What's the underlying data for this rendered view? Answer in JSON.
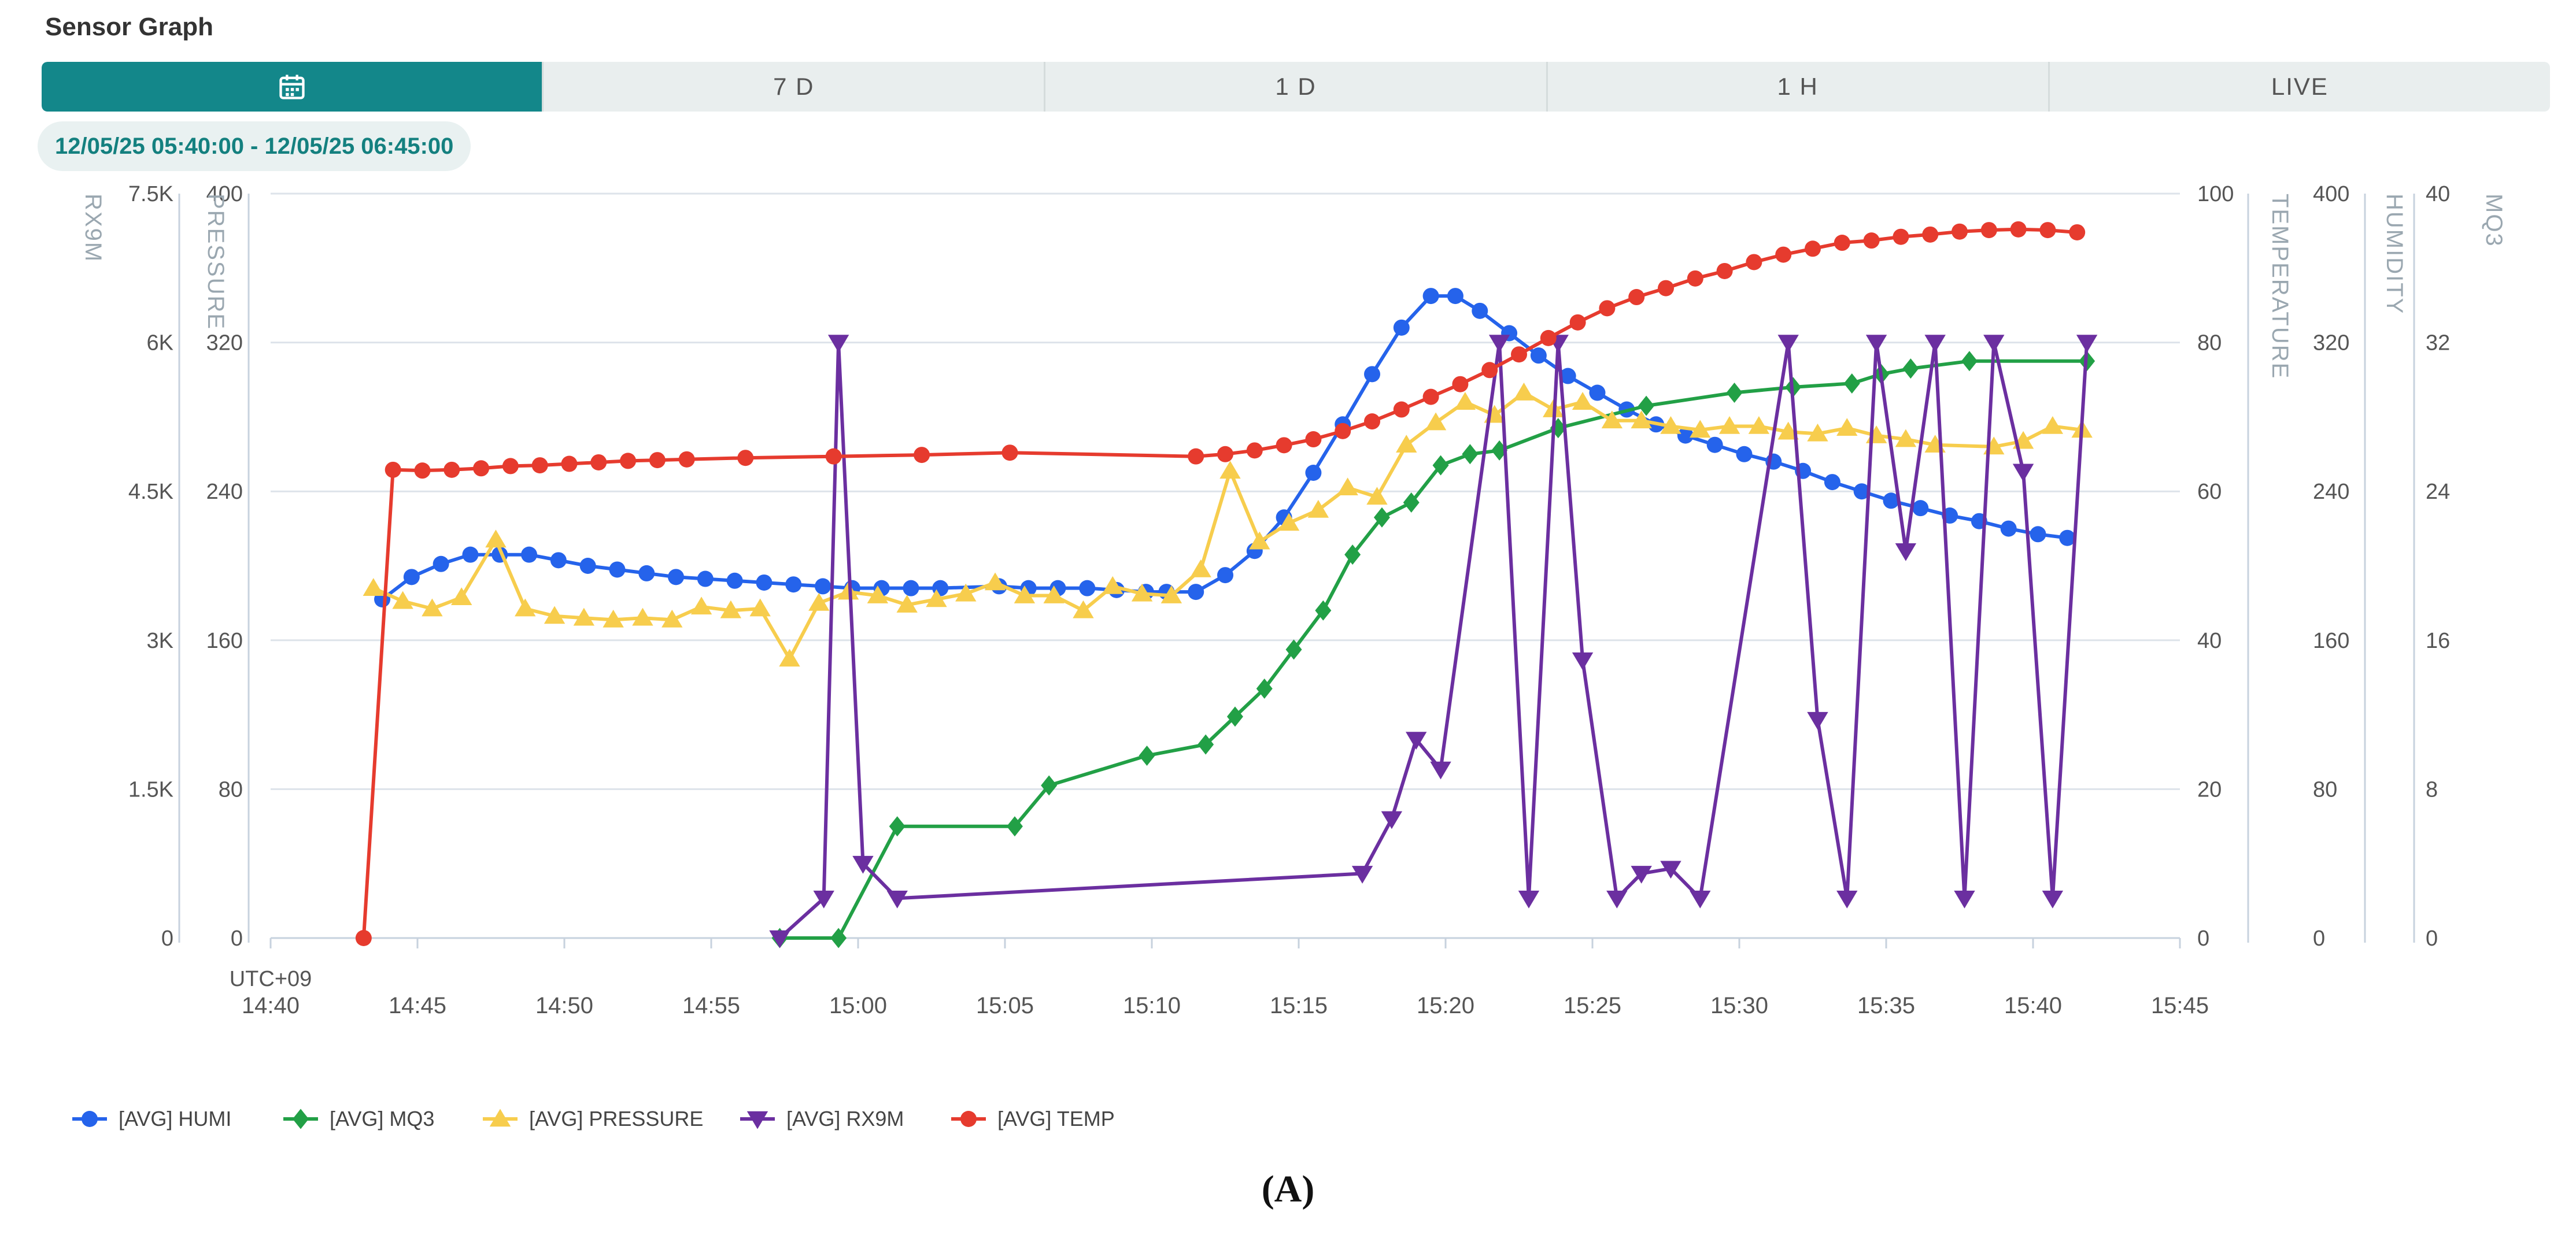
{
  "header": {
    "title": "Sensor Graph"
  },
  "tabs": [
    {
      "label": "",
      "icon": "calendar-icon",
      "active": true
    },
    {
      "label": "7 D"
    },
    {
      "label": "1 D"
    },
    {
      "label": "1 H"
    },
    {
      "label": "LIVE"
    }
  ],
  "range_label": "12/05/25 05:40:00 - 12/05/25 06:45:00",
  "figure_caption": "(A)",
  "colors": {
    "accent": "#13878a",
    "humi": "#2563eb",
    "mq3": "#22a046",
    "pressure": "#f7cd4d",
    "rx9m": "#6b2fa0",
    "temp": "#e63b2e"
  },
  "chart_data": {
    "type": "line",
    "timezone_label": "UTC+09",
    "x_ticks": [
      "14:40",
      "14:45",
      "14:50",
      "14:55",
      "15:00",
      "15:05",
      "15:10",
      "15:15",
      "15:20",
      "15:25",
      "15:30",
      "15:35",
      "15:40",
      "15:45"
    ],
    "xlim": [
      "14:40",
      "15:45"
    ],
    "grid": true,
    "legend_position": "bottom-left",
    "axes": [
      {
        "id": "rx9m",
        "label": "RX9M",
        "side": "left",
        "ylim": [
          0,
          7500
        ],
        "ticks": [
          "0",
          "1.5K",
          "3K",
          "4.5K",
          "6K",
          "7.5K"
        ]
      },
      {
        "id": "pressure",
        "label": "PRESSURE",
        "side": "left",
        "ylim": [
          0,
          400
        ],
        "ticks": [
          "0",
          "80",
          "160",
          "240",
          "320",
          "400"
        ]
      },
      {
        "id": "temperature",
        "label": "TEMPERATURE",
        "side": "right",
        "ylim": [
          0,
          100
        ],
        "ticks": [
          "0",
          "20",
          "40",
          "60",
          "80",
          "100"
        ]
      },
      {
        "id": "humidity",
        "label": "HUMIDITY",
        "side": "right",
        "ylim": [
          0,
          400
        ],
        "ticks": [
          "0",
          "80",
          "160",
          "240",
          "320",
          "400"
        ]
      },
      {
        "id": "mq3",
        "label": "MQ3",
        "side": "right",
        "ylim": [
          0,
          40
        ],
        "ticks": [
          "0",
          "8",
          "16",
          "24",
          "32",
          "40"
        ]
      }
    ],
    "series": [
      {
        "name": "[AVG] HUMI",
        "axis": "humidity",
        "marker": "circle",
        "color": "#2563eb",
        "points": [
          [
            "14:43:48",
            182
          ],
          [
            "14:44:48",
            194
          ],
          [
            "14:45:48",
            201
          ],
          [
            "14:46:48",
            206
          ],
          [
            "14:47:48",
            206
          ],
          [
            "14:48:48",
            206
          ],
          [
            "14:49:48",
            203
          ],
          [
            "14:50:48",
            200
          ],
          [
            "14:51:48",
            198
          ],
          [
            "14:52:48",
            196
          ],
          [
            "14:53:48",
            194
          ],
          [
            "14:54:48",
            193
          ],
          [
            "14:55:48",
            192
          ],
          [
            "14:56:48",
            191
          ],
          [
            "14:57:48",
            190
          ],
          [
            "14:58:48",
            189
          ],
          [
            "14:59:48",
            188
          ],
          [
            "15:00:48",
            188
          ],
          [
            "15:01:48",
            188
          ],
          [
            "15:02:48",
            188
          ],
          [
            "15:04:48",
            189
          ],
          [
            "15:05:48",
            188
          ],
          [
            "15:06:48",
            188
          ],
          [
            "15:07:48",
            188
          ],
          [
            "15:08:48",
            187
          ],
          [
            "15:09:48",
            186
          ],
          [
            "15:10:30",
            186
          ],
          [
            "15:11:30",
            186
          ],
          [
            "15:12:30",
            195
          ],
          [
            "15:13:30",
            208
          ],
          [
            "15:14:30",
            226
          ],
          [
            "15:15:30",
            250
          ],
          [
            "15:16:30",
            276
          ],
          [
            "15:17:30",
            303
          ],
          [
            "15:18:30",
            328
          ],
          [
            "15:19:30",
            345
          ],
          [
            "15:20:20",
            345
          ],
          [
            "15:21:10",
            337
          ],
          [
            "15:22:10",
            325
          ],
          [
            "15:23:10",
            313
          ],
          [
            "15:24:10",
            302
          ],
          [
            "15:25:10",
            293
          ],
          [
            "15:26:10",
            284
          ],
          [
            "15:27:10",
            276
          ],
          [
            "15:28:10",
            270
          ],
          [
            "15:29:10",
            265
          ],
          [
            "15:30:10",
            260
          ],
          [
            "15:31:10",
            256
          ],
          [
            "15:32:10",
            251
          ],
          [
            "15:33:10",
            245
          ],
          [
            "15:34:10",
            240
          ],
          [
            "15:35:10",
            235
          ],
          [
            "15:36:10",
            231
          ],
          [
            "15:37:10",
            227
          ],
          [
            "15:38:10",
            224
          ],
          [
            "15:39:10",
            220
          ],
          [
            "15:40:10",
            217
          ],
          [
            "15:41:10",
            215
          ]
        ]
      },
      {
        "name": "[AVG] MQ3",
        "axis": "mq3",
        "marker": "diamond",
        "color": "#22a046",
        "points": [
          [
            "14:57:20",
            0
          ],
          [
            "14:59:20",
            0
          ],
          [
            "15:01:20",
            6
          ],
          [
            "15:05:20",
            6
          ],
          [
            "15:06:30",
            8.2
          ],
          [
            "15:09:50",
            9.8
          ],
          [
            "15:11:50",
            10.4
          ],
          [
            "15:12:50",
            11.9
          ],
          [
            "15:13:50",
            13.4
          ],
          [
            "15:14:50",
            15.5
          ],
          [
            "15:15:50",
            17.6
          ],
          [
            "15:16:50",
            20.6
          ],
          [
            "15:17:50",
            22.6
          ],
          [
            "15:18:50",
            23.4
          ],
          [
            "15:19:50",
            25.4
          ],
          [
            "15:20:50",
            26.0
          ],
          [
            "15:21:50",
            26.2
          ],
          [
            "15:23:50",
            27.4
          ],
          [
            "15:26:50",
            28.6
          ],
          [
            "15:29:50",
            29.3
          ],
          [
            "15:31:50",
            29.6
          ],
          [
            "15:33:50",
            29.8
          ],
          [
            "15:34:50",
            30.3
          ],
          [
            "15:35:50",
            30.6
          ],
          [
            "15:37:50",
            31.0
          ],
          [
            "15:41:50",
            31.0
          ]
        ]
      },
      {
        "name": "[AVG] PRESSURE",
        "axis": "pressure",
        "marker": "triangle-up",
        "color": "#f7cd4d",
        "points": [
          [
            "14:43:30",
            188
          ],
          [
            "14:44:30",
            181
          ],
          [
            "14:45:30",
            177
          ],
          [
            "14:46:30",
            183
          ],
          [
            "14:47:40",
            214
          ],
          [
            "14:48:40",
            177
          ],
          [
            "14:49:40",
            173
          ],
          [
            "14:50:40",
            172
          ],
          [
            "14:51:40",
            171
          ],
          [
            "14:52:40",
            172
          ],
          [
            "14:53:40",
            171
          ],
          [
            "14:54:40",
            178
          ],
          [
            "14:55:40",
            176
          ],
          [
            "14:56:40",
            177
          ],
          [
            "14:57:40",
            150
          ],
          [
            "14:58:40",
            180
          ],
          [
            "14:59:40",
            186
          ],
          [
            "15:00:40",
            184
          ],
          [
            "15:01:40",
            179
          ],
          [
            "15:02:40",
            182
          ],
          [
            "15:03:40",
            185
          ],
          [
            "15:04:40",
            191
          ],
          [
            "15:05:40",
            184
          ],
          [
            "15:06:40",
            184
          ],
          [
            "15:07:40",
            176
          ],
          [
            "15:08:40",
            189
          ],
          [
            "15:09:40",
            185
          ],
          [
            "15:10:40",
            184
          ],
          [
            "15:11:40",
            198
          ],
          [
            "15:12:40",
            251
          ],
          [
            "15:13:40",
            213
          ],
          [
            "15:14:40",
            223
          ],
          [
            "15:15:40",
            230
          ],
          [
            "15:16:40",
            242
          ],
          [
            "15:17:40",
            237
          ],
          [
            "15:18:40",
            265
          ],
          [
            "15:19:40",
            277
          ],
          [
            "15:20:40",
            288
          ],
          [
            "15:21:40",
            281
          ],
          [
            "15:22:40",
            293
          ],
          [
            "15:23:40",
            284
          ],
          [
            "15:24:40",
            288
          ],
          [
            "15:25:40",
            278
          ],
          [
            "15:26:40",
            278
          ],
          [
            "15:27:40",
            275
          ],
          [
            "15:28:40",
            273
          ],
          [
            "15:29:40",
            275
          ],
          [
            "15:30:40",
            275
          ],
          [
            "15:31:40",
            272
          ],
          [
            "15:32:40",
            271
          ],
          [
            "15:33:40",
            274
          ],
          [
            "15:34:40",
            270
          ],
          [
            "15:35:40",
            268
          ],
          [
            "15:36:40",
            265
          ],
          [
            "15:38:40",
            264
          ],
          [
            "15:39:40",
            267
          ],
          [
            "15:40:40",
            275
          ],
          [
            "15:41:40",
            273
          ]
        ]
      },
      {
        "name": "[AVG] RX9M",
        "axis": "rx9m",
        "marker": "triangle-down",
        "color": "#6b2fa0",
        "points": [
          [
            "14:57:20",
            0
          ],
          [
            "14:58:50",
            400
          ],
          [
            "14:59:20",
            6000
          ],
          [
            "15:00:10",
            750
          ],
          [
            "15:01:20",
            400
          ],
          [
            "15:17:10",
            650
          ],
          [
            "15:18:10",
            1200
          ],
          [
            "15:19:00",
            2000
          ],
          [
            "15:19:50",
            1700
          ],
          [
            "15:21:50",
            6000
          ],
          [
            "15:22:50",
            400
          ],
          [
            "15:23:50",
            6000
          ],
          [
            "15:24:40",
            2800
          ],
          [
            "15:25:50",
            400
          ],
          [
            "15:26:40",
            650
          ],
          [
            "15:27:40",
            700
          ],
          [
            "15:28:40",
            400
          ],
          [
            "15:31:40",
            6000
          ],
          [
            "15:32:40",
            2200
          ],
          [
            "15:33:40",
            400
          ],
          [
            "15:34:40",
            6000
          ],
          [
            "15:35:40",
            3900
          ],
          [
            "15:36:40",
            6000
          ],
          [
            "15:37:40",
            400
          ],
          [
            "15:38:40",
            6000
          ],
          [
            "15:39:40",
            4700
          ],
          [
            "15:40:40",
            400
          ],
          [
            "15:41:50",
            6000
          ]
        ]
      },
      {
        "name": "[AVG] TEMP",
        "axis": "temperature",
        "marker": "circle",
        "color": "#e63b2e",
        "points": [
          [
            "14:43:10",
            0
          ],
          [
            "14:44:10",
            62.9
          ],
          [
            "14:45:10",
            62.8
          ],
          [
            "14:46:10",
            62.9
          ],
          [
            "14:47:10",
            63.1
          ],
          [
            "14:48:10",
            63.4
          ],
          [
            "14:49:10",
            63.5
          ],
          [
            "14:50:10",
            63.7
          ],
          [
            "14:51:10",
            63.9
          ],
          [
            "14:52:10",
            64.1
          ],
          [
            "14:53:10",
            64.2
          ],
          [
            "14:54:10",
            64.3
          ],
          [
            "14:56:10",
            64.5
          ],
          [
            "14:59:10",
            64.7
          ],
          [
            "15:02:10",
            64.9
          ],
          [
            "15:05:10",
            65.2
          ],
          [
            "15:11:30",
            64.7
          ],
          [
            "15:12:30",
            65.0
          ],
          [
            "15:13:30",
            65.5
          ],
          [
            "15:14:30",
            66.2
          ],
          [
            "15:15:30",
            67.0
          ],
          [
            "15:16:30",
            68.1
          ],
          [
            "15:17:30",
            69.4
          ],
          [
            "15:18:30",
            71.0
          ],
          [
            "15:19:30",
            72.7
          ],
          [
            "15:20:30",
            74.4
          ],
          [
            "15:21:30",
            76.3
          ],
          [
            "15:22:30",
            78.4
          ],
          [
            "15:23:30",
            80.6
          ],
          [
            "15:24:30",
            82.7
          ],
          [
            "15:25:30",
            84.6
          ],
          [
            "15:26:30",
            86.1
          ],
          [
            "15:27:30",
            87.3
          ],
          [
            "15:28:30",
            88.6
          ],
          [
            "15:29:30",
            89.6
          ],
          [
            "15:30:30",
            90.8
          ],
          [
            "15:31:30",
            91.8
          ],
          [
            "15:32:30",
            92.6
          ],
          [
            "15:33:30",
            93.4
          ],
          [
            "15:34:30",
            93.7
          ],
          [
            "15:35:30",
            94.2
          ],
          [
            "15:36:30",
            94.5
          ],
          [
            "15:37:30",
            94.9
          ],
          [
            "15:38:30",
            95.1
          ],
          [
            "15:39:30",
            95.2
          ],
          [
            "15:40:30",
            95.1
          ],
          [
            "15:41:30",
            94.8
          ]
        ]
      }
    ]
  }
}
